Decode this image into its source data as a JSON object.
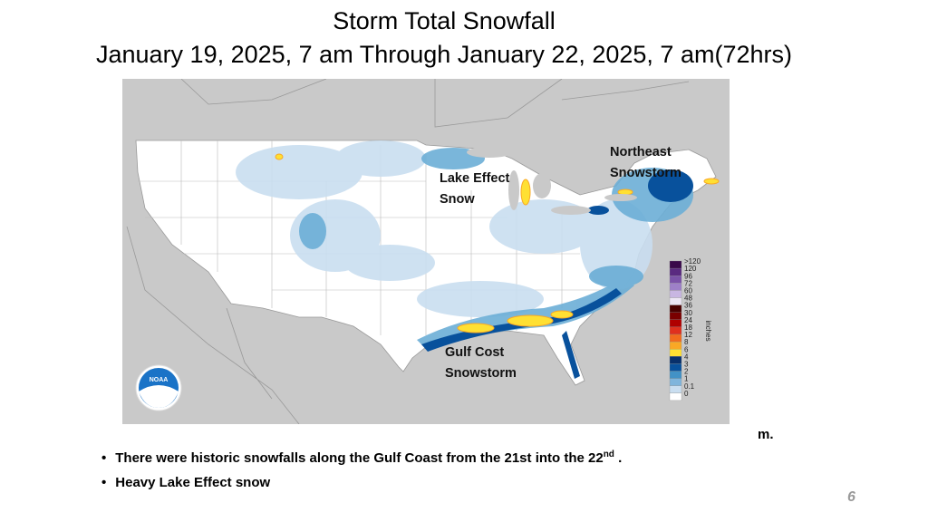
{
  "title": {
    "line1": "Storm Total Snowfall",
    "line2": "January 19, 2025, 7 am Through January 22, 2025, 7 am(72hrs)"
  },
  "map": {
    "annotations": [
      {
        "lines": [
          "Northeast",
          "Snowstorm"
        ]
      },
      {
        "lines": [
          "Lake Effect",
          "Snow"
        ]
      },
      {
        "lines": [
          "Gulf Cost",
          "Snowstorm"
        ]
      }
    ],
    "logo_text": "NOAA",
    "legend": {
      "unit": "inches",
      "levels": [
        {
          "label": ">120",
          "color": "#3a0a4a"
        },
        {
          "label": "120",
          "color": "#5a2a80"
        },
        {
          "label": "96",
          "color": "#7b52a8"
        },
        {
          "label": "72",
          "color": "#9e80c8"
        },
        {
          "label": "60",
          "color": "#c8b6e2"
        },
        {
          "label": "48",
          "color": "#ece6f4"
        },
        {
          "label": "36",
          "color": "#4a0000"
        },
        {
          "label": "30",
          "color": "#7a0000"
        },
        {
          "label": "24",
          "color": "#b00000"
        },
        {
          "label": "18",
          "color": "#e0301e"
        },
        {
          "label": "12",
          "color": "#f26b1d"
        },
        {
          "label": "8",
          "color": "#f9a825"
        },
        {
          "label": "6",
          "color": "#ffe033"
        },
        {
          "label": "4",
          "color": "#08306b"
        },
        {
          "label": "3",
          "color": "#08519c"
        },
        {
          "label": "2",
          "color": "#4292c6"
        },
        {
          "label": "1",
          "color": "#7fb5dc"
        },
        {
          "label": "0.1",
          "color": "#c9def0"
        },
        {
          "label": "0",
          "color": "#ffffff"
        }
      ]
    }
  },
  "bullets": [
    {
      "text": "There were historic snowfalls along the Gulf Coast from the 21st into the 22",
      "sup": "nd",
      "tail": " ."
    },
    {
      "text": "Heavy Lake Effect snow"
    }
  ],
  "fragment": "m.",
  "page_number": "6"
}
